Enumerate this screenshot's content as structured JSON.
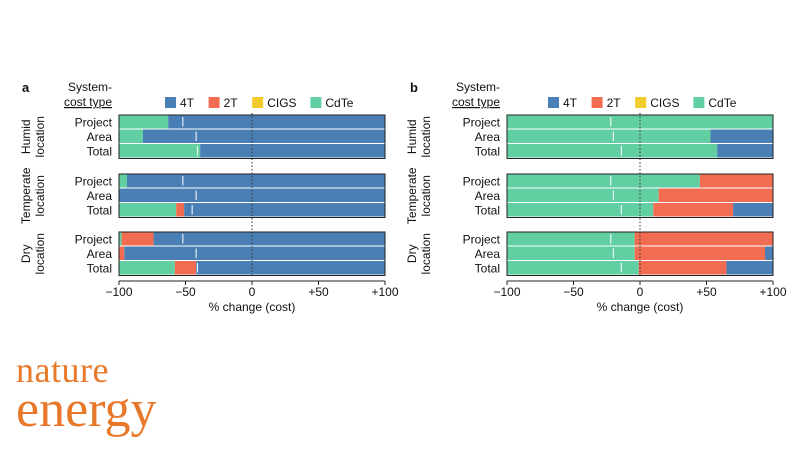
{
  "chart_data": [
    {
      "panel_label": "a",
      "type": "bar",
      "stacked": true,
      "orientation": "horizontal",
      "legend_title": "System-\ncost type",
      "legend": [
        "4T",
        "2T",
        "CIGS",
        "CdTe"
      ],
      "legend_placement": "top",
      "xlabel": "% change (cost)",
      "xlim": [
        -100,
        100
      ],
      "xticks": [
        "−100",
        "−50",
        "0",
        "+50",
        "+100"
      ],
      "groups": [
        {
          "label": "Humid\nlocation",
          "rows": [
            {
              "label": "Project",
              "segments": {
                "CdTe": 37,
                "2T": 0,
                "4T": 163
              },
              "white_marks": [
                -52
              ]
            },
            {
              "label": "Area",
              "segments": {
                "CdTe": 18,
                "2T": 0,
                "4T": 182
              },
              "white_marks": [
                -42
              ]
            },
            {
              "label": "Total",
              "segments": {
                "CdTe": 61,
                "2T": 0,
                "4T": 139
              },
              "white_marks": [
                -41
              ]
            }
          ]
        },
        {
          "label": "Temperate\nlocation",
          "rows": [
            {
              "label": "Project",
              "segments": {
                "CdTe": 6,
                "2T": 0,
                "4T": 194
              },
              "white_marks": [
                -52
              ]
            },
            {
              "label": "Area",
              "segments": {
                "CdTe": 0,
                "2T": 0,
                "4T": 200
              },
              "white_marks": [
                -42
              ]
            },
            {
              "label": "Total",
              "segments": {
                "CdTe": 43,
                "2T": 6,
                "4T": 151
              },
              "white_marks": [
                -45
              ]
            }
          ]
        },
        {
          "label": "Dry\nlocation",
          "rows": [
            {
              "label": "Project",
              "segments": {
                "CdTe": 2,
                "2T": 24,
                "4T": 174
              },
              "white_marks": [
                -52
              ]
            },
            {
              "label": "Area",
              "segments": {
                "CdTe": 0,
                "2T": 4,
                "4T": 196
              },
              "white_marks": [
                -42
              ]
            },
            {
              "label": "Total",
              "segments": {
                "CdTe": 42,
                "2T": 16,
                "4T": 142
              },
              "white_marks": [
                -41
              ]
            }
          ]
        }
      ],
      "zero_line": "dotted",
      "colors": {
        "4T": "#4a7fb5",
        "2T": "#f26c52",
        "CIGS": "#f2cc2c",
        "CdTe": "#62cfa2"
      }
    },
    {
      "panel_label": "b",
      "type": "bar",
      "stacked": true,
      "orientation": "horizontal",
      "legend_title": "System-\ncost type",
      "legend": [
        "4T",
        "2T",
        "CIGS",
        "CdTe"
      ],
      "legend_placement": "top",
      "xlabel": "% change (cost)",
      "xlim": [
        -100,
        100
      ],
      "xticks": [
        "−100",
        "−50",
        "0",
        "+50",
        "+100"
      ],
      "groups": [
        {
          "label": "Humid\nlocation",
          "rows": [
            {
              "label": "Project",
              "segments": {
                "CdTe": 200,
                "2T": 0,
                "4T": 0
              },
              "white_marks": [
                -22
              ]
            },
            {
              "label": "Area",
              "segments": {
                "CdTe": 153,
                "2T": 0,
                "4T": 47
              },
              "white_marks": [
                -20
              ]
            },
            {
              "label": "Total",
              "segments": {
                "CdTe": 158,
                "2T": 0,
                "4T": 42
              },
              "white_marks": [
                -14
              ]
            }
          ]
        },
        {
          "label": "Temperate\nlocation",
          "rows": [
            {
              "label": "Project",
              "segments": {
                "CdTe": 145,
                "2T": 55,
                "4T": 0
              },
              "white_marks": [
                -22
              ]
            },
            {
              "label": "Area",
              "segments": {
                "CdTe": 114,
                "2T": 86,
                "4T": 0
              },
              "white_marks": [
                -20
              ]
            },
            {
              "label": "Total",
              "segments": {
                "CdTe": 110,
                "2T": 60,
                "4T": 30
              },
              "white_marks": [
                -14
              ]
            }
          ]
        },
        {
          "label": "Dry\nlocation",
          "rows": [
            {
              "label": "Project",
              "segments": {
                "CdTe": 96,
                "2T": 104,
                "4T": 0
              },
              "white_marks": [
                -22
              ]
            },
            {
              "label": "Area",
              "segments": {
                "CdTe": 96,
                "2T": 98,
                "4T": 6
              },
              "white_marks": [
                -20
              ]
            },
            {
              "label": "Total",
              "segments": {
                "CdTe": 99,
                "2T": 66,
                "4T": 35
              },
              "white_marks": [
                -14
              ]
            }
          ]
        }
      ],
      "zero_line": "dotted",
      "colors": {
        "4T": "#4a7fb5",
        "2T": "#f26c52",
        "CIGS": "#f2cc2c",
        "CdTe": "#62cfa2"
      }
    }
  ],
  "branding": {
    "logo_line1": "nature",
    "logo_line2": "energy",
    "color": "#e8782a"
  }
}
